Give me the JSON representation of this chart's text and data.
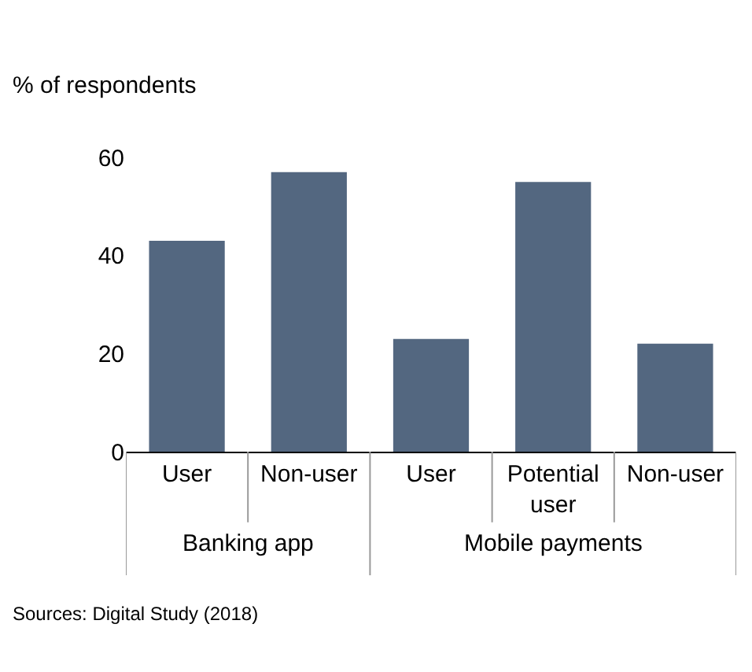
{
  "chart_data": {
    "type": "bar",
    "ylabel": "% of respondents",
    "categories": [
      "User",
      "Non-user",
      "User",
      "Potential user",
      "Non-user"
    ],
    "values": [
      43,
      57,
      23,
      55,
      22
    ],
    "color": "#536780",
    "ylim": [
      0,
      60
    ],
    "yticks": [
      0,
      20,
      40,
      60
    ],
    "annotations": [
      "Banking app",
      "Mobile payments",
      "Sources: Digital Study (2018)"
    ]
  }
}
